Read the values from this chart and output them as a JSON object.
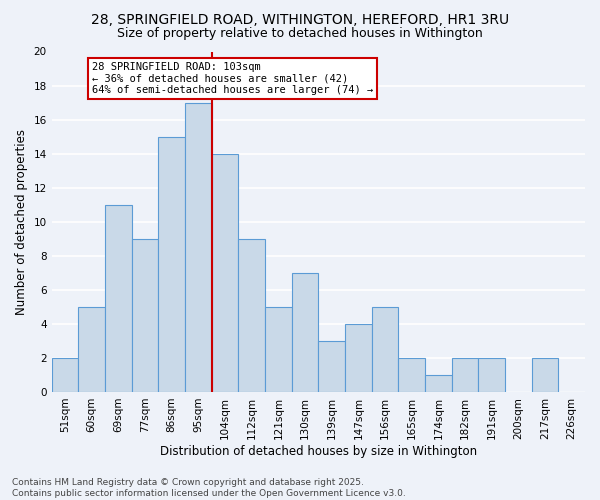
{
  "title1": "28, SPRINGFIELD ROAD, WITHINGTON, HEREFORD, HR1 3RU",
  "title2": "Size of property relative to detached houses in Withington",
  "xlabel": "Distribution of detached houses by size in Withington",
  "ylabel": "Number of detached properties",
  "footer1": "Contains HM Land Registry data © Crown copyright and database right 2025.",
  "footer2": "Contains public sector information licensed under the Open Government Licence v3.0.",
  "categories": [
    "51sqm",
    "60sqm",
    "69sqm",
    "77sqm",
    "86sqm",
    "95sqm",
    "104sqm",
    "112sqm",
    "121sqm",
    "130sqm",
    "139sqm",
    "147sqm",
    "156sqm",
    "165sqm",
    "174sqm",
    "182sqm",
    "191sqm",
    "200sqm",
    "217sqm",
    "226sqm"
  ],
  "values": [
    2,
    5,
    11,
    9,
    15,
    17,
    14,
    9,
    5,
    7,
    3,
    4,
    5,
    2,
    1,
    2,
    2,
    0,
    2,
    0
  ],
  "bar_color": "#c9d9e8",
  "bar_edge_color": "#5b9bd5",
  "annotation_box_text": "28 SPRINGFIELD ROAD: 103sqm\n← 36% of detached houses are smaller (42)\n64% of semi-detached houses are larger (74) →",
  "annotation_box_color": "#ffffff",
  "annotation_box_edge_color": "#cc0000",
  "vline_index": 6,
  "vline_color": "#cc0000",
  "ylim": [
    0,
    20
  ],
  "yticks": [
    0,
    2,
    4,
    6,
    8,
    10,
    12,
    14,
    16,
    18,
    20
  ],
  "background_color": "#eef2f9",
  "grid_color": "#ffffff",
  "title_fontsize": 10,
  "subtitle_fontsize": 9,
  "axis_label_fontsize": 8.5,
  "tick_fontsize": 7.5,
  "annotation_fontsize": 7.5,
  "footer_fontsize": 6.5
}
